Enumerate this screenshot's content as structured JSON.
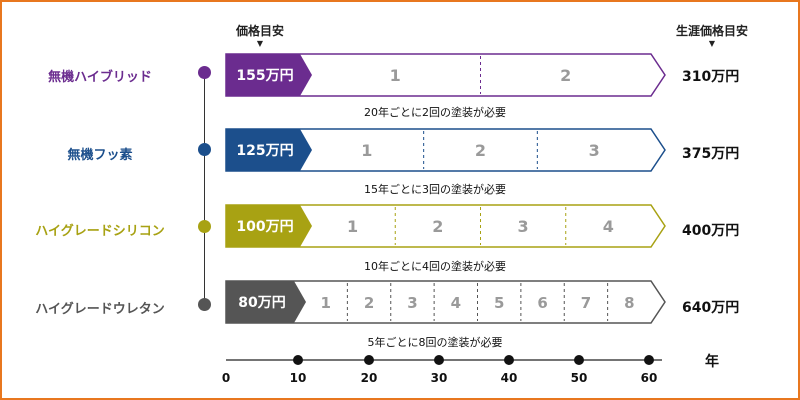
{
  "headers": {
    "price_guide": "価格目安",
    "lifetime_guide": "生涯価格目安"
  },
  "rows": [
    {
      "label": "無機ハイブリッド",
      "color": "#6b2c8f",
      "price": "155万円",
      "total": "310万円",
      "note": "20年ごとに2回の塗装が必要",
      "interval": 20,
      "paintings": [
        "1",
        "2"
      ]
    },
    {
      "label": "無機フッ素",
      "color": "#1c4f8c",
      "price": "125万円",
      "total": "375万円",
      "note": "15年ごとに3回の塗装が必要",
      "interval": 15,
      "paintings": [
        "1",
        "2",
        "3"
      ]
    },
    {
      "label": "ハイグレードシリコン",
      "color": "#a8a213",
      "price": "100万円",
      "total": "400万円",
      "note": "10年ごとに4回の塗装が必要",
      "interval": 10,
      "paintings": [
        "1",
        "2",
        "3",
        "4"
      ]
    },
    {
      "label": "ハイグレードウレタン",
      "color": "#555555",
      "price": "80万円",
      "total": "640万円",
      "note": "5年ごとに8回の塗装が必要",
      "interval": 5,
      "paintings": [
        "1",
        "2",
        "3",
        "4",
        "5",
        "6",
        "7",
        "8"
      ]
    }
  ],
  "axis": {
    "unit": "年",
    "ticks": [
      "0",
      "10",
      "20",
      "30",
      "40",
      "50",
      "60"
    ]
  },
  "colors": {
    "frame": "#e8771f",
    "segment_text": "#9a9a9a"
  }
}
